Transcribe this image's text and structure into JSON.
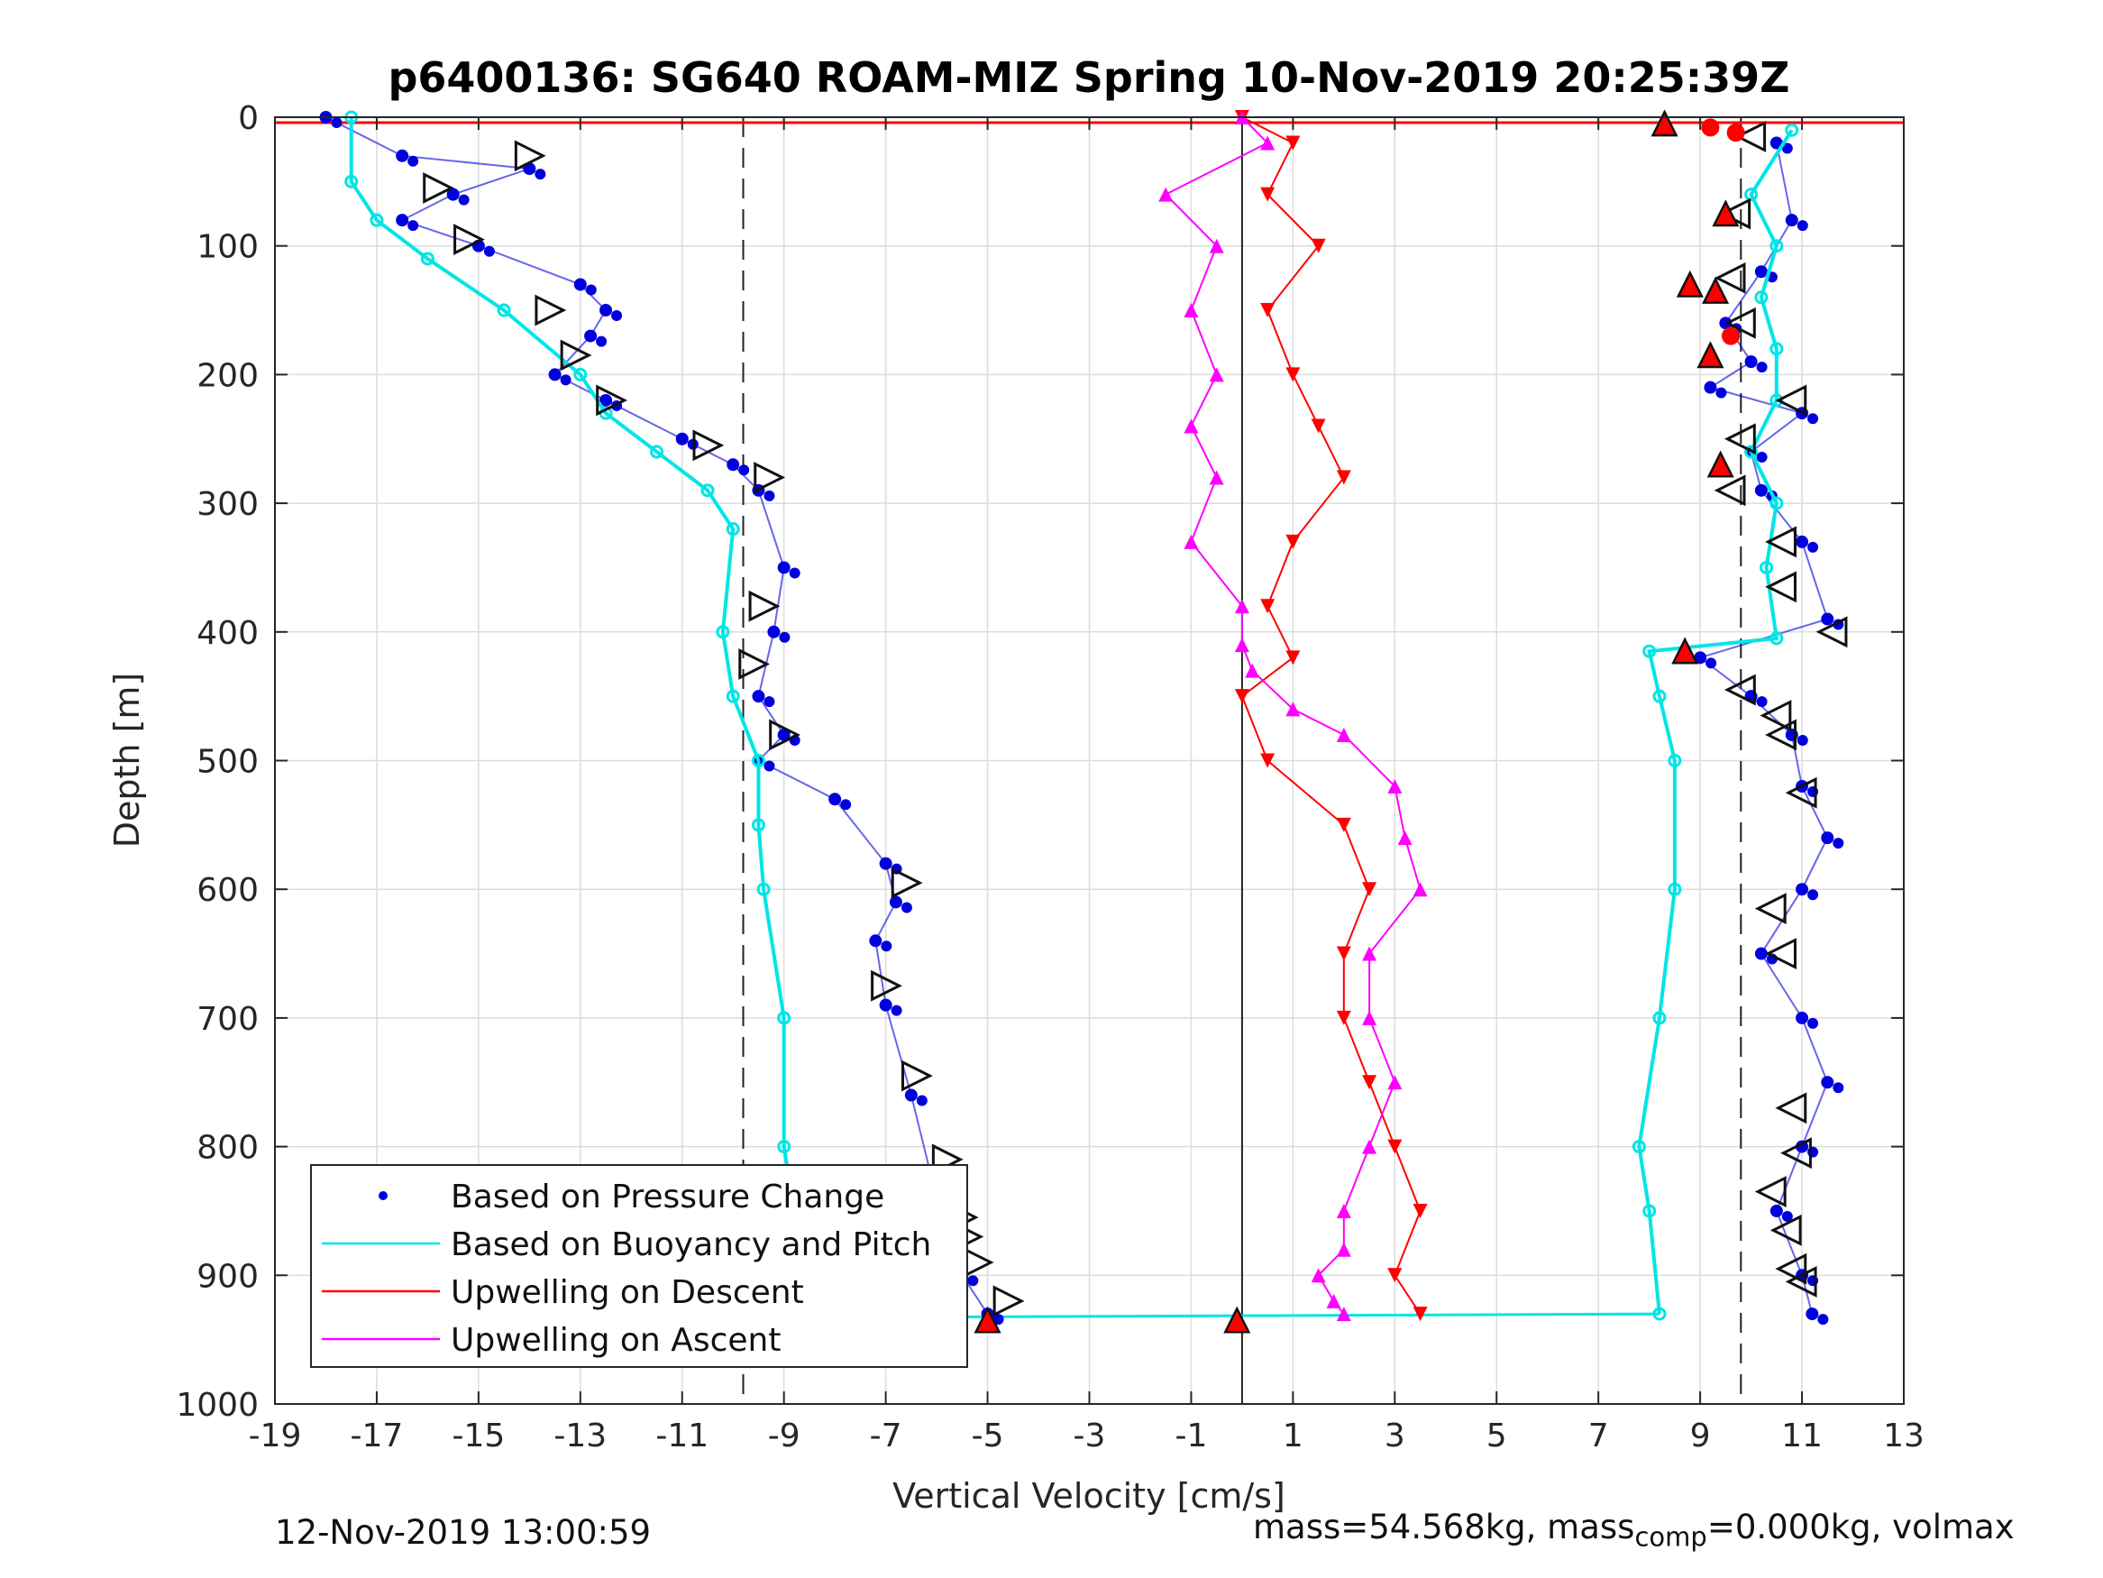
{
  "chart_data": {
    "type": "scatter",
    "title": "p6400136: SG640 ROAM-MIZ Spring 10-Nov-2019 20:25:39Z",
    "xlabel": "Vertical Velocity [cm/s]",
    "ylabel": "Depth [m]",
    "xlim": [
      -19,
      13
    ],
    "ylim": [
      0,
      1000
    ],
    "y_reversed": true,
    "x_ticks": [
      "-19",
      "-17",
      "-15",
      "-13",
      "-11",
      "-9",
      "-7",
      "-5",
      "-3",
      "-1",
      "1",
      "3",
      "5",
      "7",
      "9",
      "11",
      "13"
    ],
    "y_ticks": [
      "0",
      "100",
      "200",
      "300",
      "400",
      "500",
      "600",
      "700",
      "800",
      "900",
      "1000"
    ],
    "grid": true,
    "legend_position": "bottom-left",
    "legend": [
      {
        "label": "Based on Pressure Change",
        "color": "#0000dd",
        "style": "dot"
      },
      {
        "label": "Based on Buoyancy and Pitch",
        "color": "#00e5e5",
        "style": "line"
      },
      {
        "label": "Upwelling on Descent",
        "color": "#ff0000",
        "style": "line"
      },
      {
        "label": "Upwelling on Ascent",
        "color": "#ff00ff",
        "style": "line"
      }
    ],
    "reference_lines": {
      "dashed_x": [
        -9.8,
        9.8
      ],
      "solid_x": [
        0
      ]
    },
    "series": [
      {
        "role": "pressure-descent",
        "color": "#0000dd",
        "x": [
          -18.0,
          -16.5,
          -14.0,
          -15.5,
          -16.5,
          -15.0,
          -13.0,
          -12.5,
          -12.8,
          -13.5,
          -12.5,
          -11.0,
          -10.0,
          -9.5,
          -9.0,
          -9.2,
          -9.5,
          -9.0,
          -9.5,
          -8.0,
          -7.0,
          -6.8,
          -7.2,
          -7.0,
          -6.5,
          -6.0,
          -5.5,
          -5.0
        ],
        "y": [
          0,
          30,
          40,
          60,
          80,
          100,
          130,
          150,
          170,
          200,
          220,
          250,
          270,
          290,
          350,
          400,
          450,
          480,
          500,
          530,
          580,
          610,
          640,
          690,
          760,
          840,
          900,
          930
        ]
      },
      {
        "role": "pressure-ascent",
        "color": "#0000dd",
        "x": [
          10.5,
          10.8,
          10.2,
          9.5,
          10.0,
          9.2,
          11.0,
          10.0,
          10.2,
          11.0,
          11.5,
          9.0,
          10.0,
          10.8,
          11.0,
          11.5,
          11.0,
          10.2,
          11.0,
          11.5,
          11.0,
          10.5,
          11.0,
          11.2
        ],
        "y": [
          20,
          80,
          120,
          160,
          190,
          210,
          230,
          260,
          290,
          330,
          390,
          420,
          450,
          480,
          520,
          560,
          600,
          650,
          700,
          750,
          800,
          850,
          900,
          930
        ]
      },
      {
        "role": "buoyancy-descent",
        "color": "#00e5e5",
        "x": [
          -17.5,
          -17.5,
          -17.0,
          -16.0,
          -14.5,
          -13.0,
          -12.5,
          -11.5,
          -10.5,
          -10.0,
          -10.2,
          -10.0,
          -9.5,
          -9.5,
          -9.4,
          -9.0,
          -9.0,
          -8.8,
          -9.0
        ],
        "y": [
          0,
          50,
          80,
          110,
          150,
          200,
          230,
          260,
          290,
          320,
          400,
          450,
          500,
          550,
          600,
          700,
          800,
          850,
          930
        ]
      },
      {
        "role": "buoyancy-ascent",
        "color": "#00e5e5",
        "x": [
          8.2,
          8.0,
          7.8,
          8.2,
          8.5,
          8.5,
          8.2,
          8.0,
          10.5,
          10.3,
          10.5,
          10.0,
          10.5,
          10.5,
          10.2,
          10.5,
          10.0,
          10.8
        ],
        "y": [
          930,
          850,
          800,
          700,
          600,
          500,
          450,
          415,
          405,
          350,
          300,
          260,
          220,
          180,
          140,
          100,
          60,
          10
        ]
      },
      {
        "role": "upwelling-descent",
        "color": "#ff0000",
        "x": [
          0.0,
          1.0,
          0.5,
          1.5,
          0.5,
          1.0,
          1.5,
          2.0,
          1.0,
          0.5,
          1.0,
          0.0,
          0.5,
          2.0,
          2.5,
          2.0,
          2.0,
          2.5,
          3.0,
          3.5,
          3.0,
          3.5
        ],
        "y": [
          0,
          20,
          60,
          100,
          150,
          200,
          240,
          280,
          330,
          380,
          420,
          450,
          500,
          550,
          600,
          650,
          700,
          750,
          800,
          850,
          900,
          930
        ]
      },
      {
        "role": "upwelling-ascent",
        "color": "#ff00ff",
        "x": [
          0.0,
          0.5,
          -1.5,
          -0.5,
          -1.0,
          -0.5,
          -1.0,
          -0.5,
          -1.0,
          0.0,
          0.0,
          0.2,
          1.0,
          2.0,
          3.0,
          3.2,
          3.5,
          2.5,
          2.5,
          3.0,
          2.5,
          2.0,
          2.0,
          1.5,
          1.8,
          2.0
        ],
        "y": [
          0,
          20,
          60,
          100,
          150,
          200,
          240,
          280,
          330,
          380,
          410,
          430,
          460,
          480,
          520,
          560,
          600,
          650,
          700,
          750,
          800,
          850,
          880,
          900,
          920,
          930
        ]
      }
    ],
    "markers": {
      "descent_triangles": {
        "x": [
          -14,
          -15.8,
          -15.2,
          -13.6,
          -13.1,
          -12.4,
          -10.5,
          -9.3,
          -9.4,
          -9.6,
          -9.0,
          -6.6,
          -7.0,
          -6.4,
          -5.8,
          -5.5,
          -5.4,
          -5.2,
          -4.6
        ],
        "y": [
          30,
          55,
          95,
          150,
          185,
          220,
          255,
          280,
          380,
          425,
          480,
          595,
          675,
          745,
          810,
          855,
          870,
          890,
          920
        ]
      },
      "ascent_triangles": {
        "x": [
          10.0,
          9.7,
          9.6,
          9.8,
          10.8,
          9.8,
          9.6,
          10.6,
          10.6,
          11.6,
          9.8,
          10.5,
          10.6,
          11.0,
          10.4,
          10.6,
          10.8,
          10.9,
          10.4,
          10.7,
          10.8,
          11.0
        ],
        "y": [
          15,
          75,
          125,
          160,
          220,
          250,
          290,
          330,
          365,
          400,
          445,
          465,
          480,
          525,
          615,
          650,
          770,
          805,
          835,
          865,
          895,
          905
        ]
      },
      "red_triangles": {
        "x": [
          8.3,
          9.5,
          8.8,
          9.3,
          9.2,
          9.4,
          8.7,
          -5.0,
          -0.1
        ],
        "y": [
          5,
          75,
          130,
          135,
          185,
          270,
          415,
          935,
          935
        ]
      },
      "red_circles": {
        "x": [
          9.2,
          9.7,
          9.6
        ],
        "y": [
          8,
          12,
          170
        ]
      }
    }
  },
  "footer": {
    "timestamp": "12-Nov-2019 13:00:59",
    "mass_text": "mass=54.568kg, mass",
    "mass_sub": "comp",
    "mass_rest": "=0.000kg, volmax"
  }
}
